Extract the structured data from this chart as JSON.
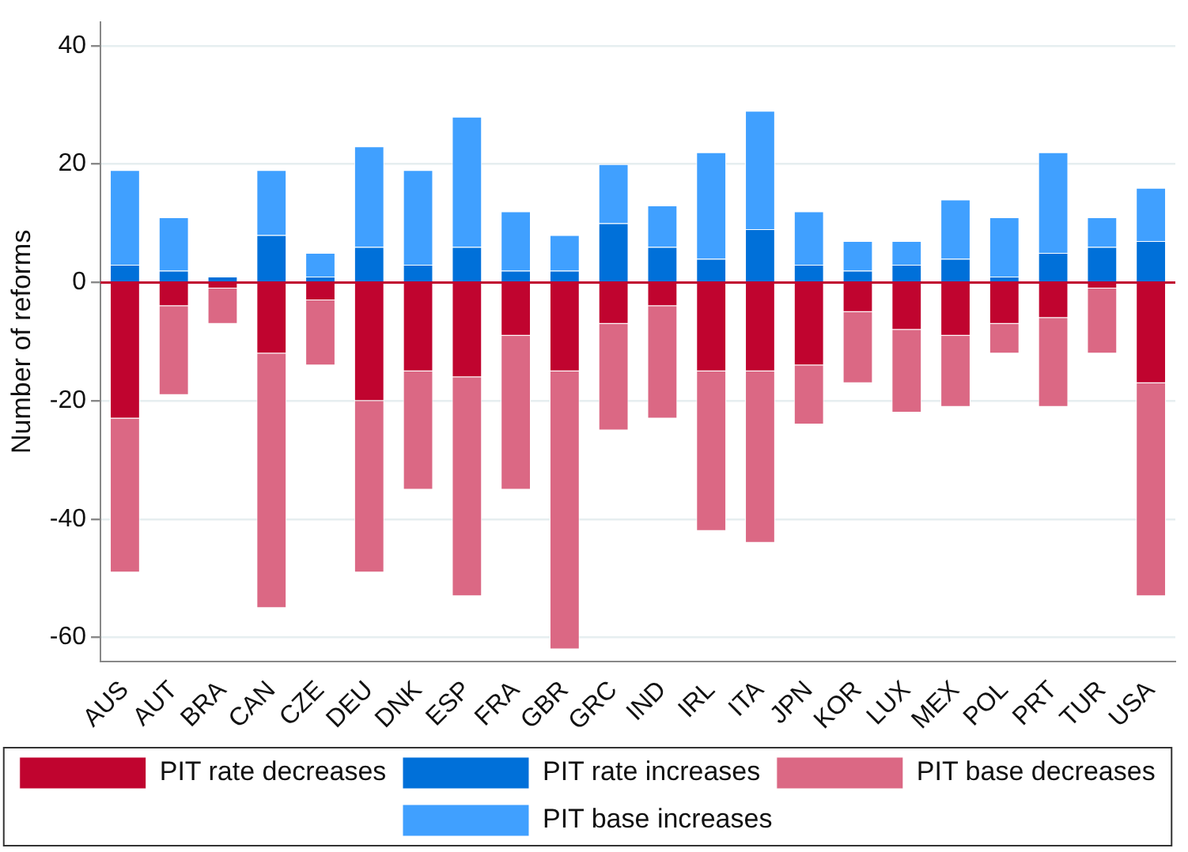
{
  "chart_data": {
    "type": "bar",
    "ylabel": "Number of reforms",
    "stacked": true,
    "categories": [
      "AUS",
      "AUT",
      "BRA",
      "CAN",
      "CZE",
      "DEU",
      "DNK",
      "ESP",
      "FRA",
      "GBR",
      "GRC",
      "IND",
      "IRL",
      "ITA",
      "JPN",
      "KOR",
      "LUX",
      "MEX",
      "POL",
      "PRT",
      "TUR",
      "USA"
    ],
    "series": [
      {
        "name": "PIT rate decreases",
        "color": "#c0042f",
        "values": [
          -23,
          -4,
          -1,
          -12,
          -3,
          -20,
          -15,
          -16,
          -9,
          -15,
          -7,
          -4,
          -15,
          -15,
          -14,
          -5,
          -8,
          -9,
          -7,
          -6,
          -1,
          -17
        ]
      },
      {
        "name": "PIT rate increases",
        "color": "#0070d9",
        "values": [
          3,
          2,
          1,
          8,
          1,
          6,
          3,
          6,
          2,
          2,
          10,
          6,
          4,
          9,
          3,
          2,
          3,
          4,
          1,
          5,
          6,
          7
        ]
      },
      {
        "name": "PIT base decreases",
        "color": "#db6884",
        "values": [
          -26,
          -15,
          -6,
          -43,
          -11,
          -29,
          -20,
          -37,
          -26,
          -47,
          -18,
          -19,
          -27,
          -29,
          -10,
          -12,
          -14,
          -12,
          -5,
          -15,
          -11,
          -36
        ]
      },
      {
        "name": "PIT base increases",
        "color": "#40a0ff",
        "values": [
          16,
          9,
          0,
          11,
          4,
          17,
          16,
          22,
          10,
          6,
          10,
          7,
          18,
          20,
          9,
          5,
          4,
          10,
          10,
          17,
          5,
          9
        ]
      }
    ],
    "ylim": [
      -64,
      44
    ],
    "yticks": [
      -60,
      -40,
      -20,
      0,
      20,
      40
    ],
    "grid": "y",
    "legend": "bottom",
    "ref_lines": [
      {
        "axis": "y",
        "value": 0,
        "color": "#c0042f"
      }
    ]
  }
}
